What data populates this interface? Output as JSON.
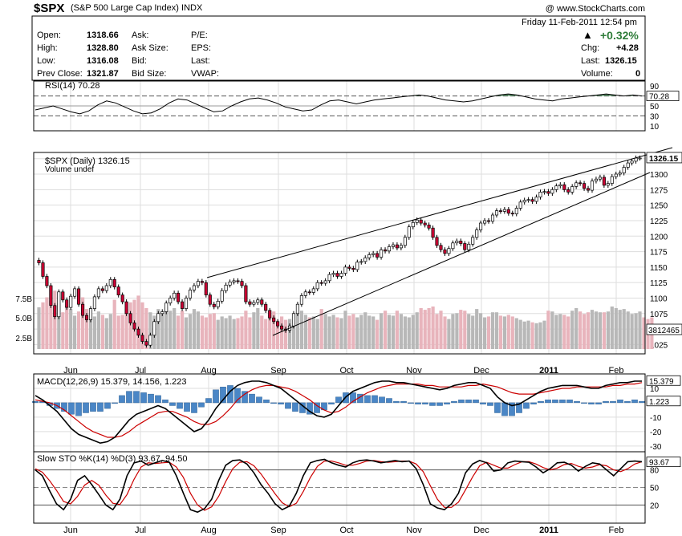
{
  "header": {
    "symbol": "$SPX",
    "description": "(S&P 500 Large Cap Index)",
    "exchange": "INDX",
    "copyright": "@ www.StockCharts.com"
  },
  "quote": {
    "open_label": "Open:",
    "open": "1318.66",
    "high_label": "High:",
    "high": "1328.80",
    "low_label": "Low:",
    "low": "1316.08",
    "prev_close_label": "Prev Close:",
    "prev_close": "1321.87",
    "ask_label": "Ask:",
    "ask_size_label": "Ask Size:",
    "bid_label": "Bid:",
    "bid_size_label": "Bid Size:",
    "pe_label": "P/E:",
    "eps_label": "EPS:",
    "last_label": "Last:",
    "vwap_label": "VWAP:",
    "datetime": "Friday  11-Feb-2011  12:54 pm",
    "change_pct": "+0.32%",
    "chg_label": "Chg:",
    "chg": "+4.28",
    "last2_label": "Last:",
    "last2": "1326.15",
    "volume_label": "Volume:",
    "volume": "0"
  },
  "colors": {
    "up": "#2f7d3a",
    "down": "#cc0033",
    "macd_signal": "#cc0000",
    "hist": "#4a86c6",
    "rsi_fill": "#3a7a4a"
  },
  "chart_data": [
    {
      "type": "line",
      "title": "RSI(14) 70.28",
      "yticks": [
        90,
        70,
        50,
        30,
        10
      ],
      "ylim": [
        0,
        100
      ],
      "last_value": "70.28",
      "y": [
        42,
        46,
        50,
        44,
        38,
        34,
        40,
        52,
        60,
        56,
        48,
        40,
        34,
        36,
        44,
        56,
        64,
        62,
        54,
        46,
        38,
        40,
        50,
        58,
        64,
        66,
        62,
        56,
        48,
        44,
        40,
        42,
        52,
        60,
        62,
        58,
        54,
        58,
        62,
        64,
        66,
        68,
        70,
        72,
        70,
        66,
        62,
        60,
        58,
        60,
        64,
        68,
        72,
        74,
        72,
        68,
        64,
        62,
        60,
        64,
        66,
        68,
        70,
        72,
        74,
        72,
        70,
        72,
        70
      ]
    },
    {
      "type": "candlestick",
      "title": "$SPX (Daily) 1326.15",
      "volume_label": "Volume undef",
      "yticks": [
        1025,
        1050,
        1075,
        1100,
        1125,
        1150,
        1175,
        1200,
        1225,
        1250,
        1275,
        1300,
        1325
      ],
      "ylim": [
        1010,
        1335
      ],
      "last_price": "1326.15",
      "volume_ticks": [
        "7.5B",
        "5.0B",
        "2.5B"
      ],
      "volume_last": "3812465",
      "x_labels": [
        "Jun",
        "Jul",
        "Aug",
        "Sep",
        "Oct",
        "Nov",
        "Dec",
        "2011",
        "Feb"
      ],
      "close": [
        1157,
        1135,
        1120,
        1088,
        1070,
        1110,
        1097,
        1085,
        1103,
        1115,
        1090,
        1072,
        1065,
        1083,
        1102,
        1115,
        1112,
        1120,
        1130,
        1118,
        1105,
        1094,
        1075,
        1060,
        1050,
        1040,
        1030,
        1024,
        1040,
        1062,
        1075,
        1078,
        1092,
        1100,
        1108,
        1094,
        1083,
        1100,
        1113,
        1120,
        1127,
        1125,
        1105,
        1090,
        1086,
        1095,
        1112,
        1121,
        1126,
        1128,
        1127,
        1120,
        1094,
        1090,
        1093,
        1097,
        1090,
        1080,
        1068,
        1062,
        1055,
        1050,
        1048,
        1055,
        1075,
        1090,
        1104,
        1110,
        1109,
        1115,
        1125,
        1124,
        1128,
        1138,
        1140,
        1135,
        1140,
        1150,
        1148,
        1146,
        1158,
        1159,
        1165,
        1170,
        1172,
        1166,
        1178,
        1176,
        1183,
        1186,
        1181,
        1185,
        1198,
        1215,
        1222,
        1226,
        1221,
        1218,
        1213,
        1198,
        1185,
        1178,
        1172,
        1180,
        1189,
        1192,
        1188,
        1178,
        1187,
        1198,
        1210,
        1221,
        1225,
        1224,
        1234,
        1241,
        1240,
        1243,
        1237,
        1236,
        1245,
        1255,
        1258,
        1259,
        1256,
        1263,
        1271,
        1272,
        1269,
        1275,
        1281,
        1283,
        1275,
        1271,
        1280,
        1286,
        1285,
        1277,
        1274,
        1289,
        1292,
        1295,
        1282,
        1285,
        1296,
        1300,
        1302,
        1311,
        1318,
        1321,
        1326,
        1326
      ],
      "volume_billion": [
        5.0,
        5.6,
        6.2,
        5.8,
        7.0,
        5.5,
        4.4,
        5.2,
        4.8,
        4.0,
        4.5,
        6.2,
        4.8,
        4.3,
        3.9,
        4.5,
        4.1,
        3.7,
        4.2,
        5.9,
        4.0,
        4.1,
        4.8,
        5.6,
        5.9,
        6.4,
        5.6,
        4.9,
        4.4,
        4.0,
        4.8,
        4.2,
        5.0,
        4.6,
        4.9,
        4.0,
        4.6,
        3.8,
        4.2,
        4.8,
        4.5,
        4.0,
        3.8,
        4.2,
        4.3,
        3.5,
        3.9,
        3.7,
        4.0,
        3.6,
        3.7,
        3.9,
        4.6,
        3.8,
        4.4,
        4.9,
        4.0,
        3.6,
        4.1,
        4.5,
        3.4,
        3.9,
        3.5,
        3.6,
        4.0,
        4.4,
        4.6,
        4.1,
        3.8,
        3.9,
        3.6,
        4.8,
        4.2,
        3.9,
        4.1,
        3.8,
        3.7,
        4.6,
        4.0,
        4.2,
        3.8,
        4.1,
        4.4,
        4.0,
        3.9,
        3.5,
        4.3,
        4.6,
        4.1,
        4.0,
        4.6,
        4.2,
        3.9,
        3.8,
        4.1,
        4.4,
        4.9,
        4.7,
        4.9,
        5.1,
        4.2,
        4.6,
        3.9,
        3.6,
        4.2,
        4.3,
        4.7,
        4.6,
        4.2,
        4.0,
        4.8,
        4.3,
        3.8,
        3.9,
        4.4,
        4.4,
        4.0,
        3.9,
        4.1,
        3.9,
        3.7,
        3.5,
        3.3,
        3.4,
        3.2,
        3.1,
        3.2,
        3.4,
        4.6,
        4.5,
        4.1,
        4.2,
        4.1,
        3.9,
        4.6,
        4.9,
        4.5,
        4.2,
        4.4,
        4.7,
        4.5,
        4.4,
        4.4,
        4.5,
        5.1,
        4.9,
        4.7,
        4.8,
        4.5,
        4.2,
        4.3,
        4.5,
        3.8,
        3.6,
        3.8
      ]
    },
    {
      "type": "line",
      "title": "MACD(12,26,9) 15.379, 14.156, 1.223",
      "yticks": [
        10,
        0,
        -10,
        -20,
        -30
      ],
      "ylim": [
        -34,
        20
      ],
      "last_values": [
        "15.379",
        "1.223"
      ],
      "series": [
        {
          "name": "MACD",
          "values": [
            5,
            2,
            -2,
            -6,
            -12,
            -18,
            -22,
            -24,
            -26,
            -28,
            -27,
            -24,
            -18,
            -12,
            -8,
            -6,
            -4,
            -2,
            -4,
            -8,
            -12,
            -16,
            -20,
            -18,
            -12,
            -4,
            2,
            8,
            12,
            14,
            15,
            15,
            14,
            12,
            10,
            6,
            2,
            -2,
            -6,
            -9,
            -10,
            -8,
            -2,
            4,
            8,
            10,
            12,
            14,
            15,
            15,
            14,
            14,
            13,
            12,
            11,
            10,
            9,
            10,
            12,
            13,
            14,
            14,
            12,
            10,
            4,
            0,
            -2,
            -1,
            2,
            5,
            8,
            10,
            11,
            12,
            12,
            12,
            11,
            10,
            10,
            12,
            13,
            14,
            14,
            15,
            15
          ]
        },
        {
          "name": "Signal",
          "values": [
            2,
            1,
            0,
            -2,
            -5,
            -9,
            -13,
            -17,
            -20,
            -22,
            -24,
            -24,
            -23,
            -20,
            -16,
            -13,
            -10,
            -7,
            -6,
            -6,
            -8,
            -10,
            -13,
            -15,
            -15,
            -13,
            -9,
            -4,
            2,
            6,
            9,
            11,
            12,
            12,
            11,
            10,
            8,
            5,
            2,
            -2,
            -5,
            -7,
            -6,
            -3,
            1,
            4,
            7,
            9,
            11,
            12,
            13,
            13,
            13,
            13,
            12,
            12,
            11,
            11,
            11,
            11,
            12,
            12,
            13,
            12,
            11,
            9,
            7,
            6,
            6,
            6,
            7,
            8,
            9,
            10,
            10,
            11,
            11,
            11,
            11,
            11,
            12,
            12,
            13,
            13,
            14
          ]
        },
        {
          "name": "Histogram",
          "values": [
            1,
            1,
            -2,
            -4,
            -6,
            -8,
            -9,
            -7,
            -6,
            -6,
            -4,
            0,
            5,
            8,
            8,
            7,
            6,
            5,
            2,
            -2,
            -4,
            -6,
            -7,
            -3,
            3,
            9,
            11,
            12,
            10,
            8,
            6,
            4,
            2,
            0,
            -1,
            -4,
            -6,
            -7,
            -8,
            -7,
            -5,
            -1,
            4,
            7,
            7,
            6,
            5,
            5,
            4,
            3,
            1,
            1,
            0,
            -1,
            -1,
            -2,
            -2,
            -1,
            1,
            2,
            2,
            2,
            -1,
            -2,
            -7,
            -9,
            -9,
            -7,
            -4,
            -1,
            1,
            2,
            2,
            2,
            2,
            1,
            0,
            -1,
            -1,
            1,
            1,
            2,
            1,
            2,
            1
          ]
        }
      ]
    },
    {
      "type": "line",
      "title": "Slow STO %K(14) %D(3) 93.67, 94.50",
      "yticks": [
        80,
        50,
        20
      ],
      "ylim": [
        0,
        100
      ],
      "last_values": [
        "93.67"
      ],
      "series": [
        {
          "name": "%K",
          "values": [
            80,
            70,
            45,
            22,
            12,
            30,
            62,
            70,
            55,
            38,
            20,
            12,
            30,
            70,
            92,
            95,
            88,
            92,
            96,
            93,
            70,
            40,
            12,
            8,
            14,
            30,
            62,
            88,
            96,
            97,
            90,
            75,
            55,
            40,
            22,
            12,
            18,
            40,
            70,
            92,
            96,
            98,
            92,
            88,
            85,
            92,
            96,
            97,
            95,
            92,
            94,
            96,
            94,
            95,
            82,
            55,
            22,
            15,
            12,
            22,
            40,
            75,
            90,
            96,
            92,
            78,
            80,
            92,
            95,
            94,
            93,
            85,
            75,
            82,
            92,
            93,
            88,
            78,
            86,
            92,
            90,
            80,
            70,
            82,
            94,
            95,
            94
          ]
        },
        {
          "name": "%D",
          "values": [
            82,
            76,
            62,
            45,
            26,
            22,
            35,
            54,
            62,
            54,
            37,
            23,
            21,
            38,
            64,
            85,
            92,
            91,
            92,
            93,
            85,
            67,
            40,
            20,
            11,
            17,
            35,
            60,
            82,
            93,
            94,
            87,
            73,
            56,
            39,
            24,
            17,
            23,
            43,
            67,
            86,
            95,
            95,
            92,
            88,
            88,
            91,
            95,
            96,
            94,
            93,
            94,
            95,
            95,
            90,
            77,
            53,
            30,
            16,
            16,
            25,
            46,
            68,
            87,
            93,
            88,
            83,
            83,
            89,
            94,
            94,
            90,
            84,
            80,
            83,
            89,
            91,
            86,
            83,
            85,
            89,
            87,
            80,
            77,
            82,
            90,
            94
          ]
        }
      ]
    }
  ]
}
